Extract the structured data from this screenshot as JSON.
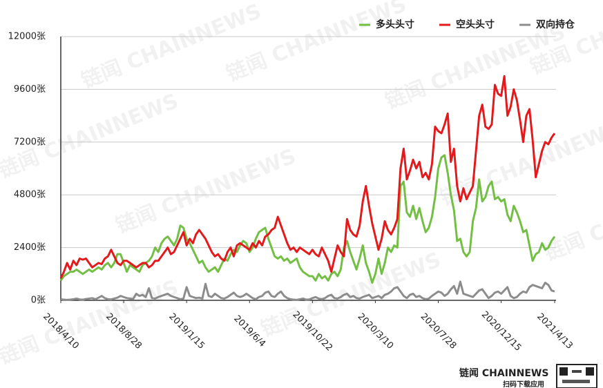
{
  "chart_data": {
    "type": "line",
    "watermark": "链闻 CHAINNEWS",
    "logo": "链闻 CHAINNEWS",
    "logo_caption": "扫码下载应用",
    "categories": [
      "2018/4/10",
      null,
      null,
      null,
      null,
      null,
      null,
      null,
      null,
      null,
      null,
      null,
      null,
      null,
      null,
      null,
      null,
      null,
      null,
      null,
      "2018/8/28",
      null,
      null,
      null,
      null,
      null,
      null,
      null,
      null,
      null,
      null,
      null,
      null,
      null,
      null,
      null,
      null,
      null,
      null,
      null,
      "2019/1/15",
      null,
      null,
      null,
      null,
      null,
      null,
      null,
      null,
      null,
      null,
      null,
      null,
      null,
      null,
      null,
      null,
      null,
      null,
      null,
      "2019/6/4",
      null,
      null,
      null,
      null,
      null,
      null,
      null,
      null,
      null,
      null,
      null,
      null,
      null,
      null,
      null,
      null,
      null,
      null,
      null,
      "2019/10/22",
      null,
      null,
      null,
      null,
      null,
      null,
      null,
      null,
      null,
      null,
      null,
      null,
      null,
      null,
      null,
      null,
      null,
      null,
      null,
      "2020/3/10",
      null,
      null,
      null,
      null,
      null,
      null,
      null,
      null,
      null,
      null,
      null,
      null,
      null,
      null,
      null,
      null,
      null,
      null,
      null,
      "2020/7/28",
      null,
      null,
      null,
      null,
      null,
      null,
      null,
      null,
      null,
      null,
      null,
      null,
      null,
      null,
      null,
      null,
      null,
      null,
      null,
      "2020/12/15",
      null,
      null,
      null,
      null,
      null,
      null,
      null,
      null,
      null,
      null,
      null,
      null,
      null,
      null,
      null,
      null,
      "2021/4/13"
    ],
    "series": [
      {
        "name": "多头头寸",
        "color": "#72bf44",
        "values": [
          900,
          1100,
          1200,
          1300,
          1300,
          1400,
          1300,
          1200,
          1300,
          1400,
          1300,
          1400,
          1500,
          1400,
          1600,
          1700,
          1500,
          1700,
          2100,
          2100,
          1700,
          1300,
          1600,
          1500,
          1400,
          1300,
          1600,
          1700,
          1800,
          2000,
          2400,
          2200,
          2600,
          2800,
          2900,
          2700,
          2500,
          2800,
          3400,
          3300,
          2800,
          2600,
          2300,
          2000,
          1700,
          1800,
          1500,
          1300,
          1400,
          1500,
          1300,
          1600,
          1900,
          1800,
          2100,
          2300,
          2200,
          2500,
          2700,
          2600,
          2200,
          2400,
          2800,
          3100,
          3200,
          3300,
          2800,
          2400,
          2000,
          1900,
          2000,
          1800,
          1900,
          1700,
          1800,
          1900,
          1500,
          1300,
          1200,
          1100,
          1100,
          900,
          1200,
          1000,
          1100,
          900,
          1200,
          1300,
          1100,
          1400,
          2400,
          2700,
          2200,
          1800,
          1400,
          1900,
          2500,
          1700,
          1300,
          800,
          1200,
          1900,
          1200,
          1700,
          2400,
          2200,
          2500,
          2400,
          5200,
          5400,
          4000,
          3800,
          4300,
          3700,
          4200,
          3600,
          3100,
          3300,
          3800,
          4700,
          6000,
          6500,
          6600,
          5800,
          4800,
          4100,
          2700,
          2800,
          2200,
          2000,
          2200,
          3600,
          4200,
          5500,
          4500,
          4700,
          5200,
          5400,
          4600,
          4700,
          4500,
          4600,
          3900,
          3600,
          4300,
          4000,
          3600,
          3100,
          3200,
          2500,
          1800,
          2100,
          2200,
          2600,
          2300,
          2400,
          2700,
          2900
        ]
      },
      {
        "name": "空头头寸",
        "color": "#e3191c",
        "values": [
          1000,
          1300,
          1700,
          1400,
          1800,
          1600,
          1900,
          1850,
          1900,
          1700,
          1500,
          1600,
          1700,
          1650,
          1900,
          2000,
          2300,
          2000,
          1700,
          1600,
          1800,
          1800,
          1700,
          1600,
          1500,
          1600,
          1700,
          1700,
          1500,
          1600,
          1800,
          1800,
          2000,
          2200,
          2400,
          2100,
          2200,
          2500,
          2800,
          3100,
          2500,
          2800,
          2600,
          3000,
          3200,
          3000,
          2800,
          2500,
          2200,
          2000,
          2100,
          1900,
          1800,
          2200,
          2400,
          2000,
          2500,
          2600,
          2500,
          2400,
          2300,
          2600,
          2400,
          2700,
          2500,
          2900,
          3000,
          3200,
          3300,
          3800,
          3400,
          3000,
          2600,
          2300,
          2400,
          2200,
          2400,
          2300,
          2200,
          2100,
          2300,
          2100,
          2000,
          2400,
          2100,
          1800,
          1300,
          1900,
          2500,
          2200,
          2000,
          3700,
          3200,
          3000,
          2900,
          3400,
          4500,
          5200,
          4300,
          3500,
          2900,
          2300,
          2800,
          3600,
          3200,
          3000,
          3300,
          3700,
          6000,
          6900,
          5500,
          5900,
          6400,
          6000,
          6300,
          5600,
          5800,
          5500,
          6200,
          7900,
          7700,
          7600,
          8000,
          8500,
          6300,
          6900,
          5200,
          4500,
          5100,
          4600,
          4900,
          5200,
          6800,
          8400,
          8900,
          7900,
          7800,
          8000,
          9800,
          9400,
          9300,
          10200,
          8400,
          8800,
          9600,
          9100,
          8200,
          7200,
          8400,
          8700,
          7300,
          5600,
          6200,
          6800,
          7200,
          7100,
          7400,
          7600
        ]
      },
      {
        "name": "双向持仓",
        "color": "#8c8c8c",
        "values": [
          50,
          30,
          20,
          30,
          50,
          80,
          40,
          30,
          60,
          80,
          100,
          50,
          120,
          200,
          100,
          50,
          40,
          80,
          120,
          200,
          150,
          100,
          80,
          60,
          300,
          200,
          250,
          150,
          550,
          100,
          80,
          150,
          200,
          250,
          300,
          200,
          150,
          100,
          50,
          80,
          600,
          200,
          150,
          100,
          120,
          80,
          750,
          200,
          150,
          300,
          200,
          100,
          80,
          150,
          250,
          350,
          200,
          150,
          200,
          300,
          200,
          100,
          50,
          150,
          200,
          350,
          400,
          200,
          150,
          300,
          400,
          200,
          100,
          50,
          30,
          20,
          50,
          80,
          30,
          40,
          100,
          150,
          80,
          50,
          100,
          200,
          250,
          100,
          80,
          150,
          250,
          300,
          150,
          200,
          100,
          80,
          150,
          200,
          250,
          100,
          150,
          200,
          100,
          250,
          300,
          400,
          550,
          600,
          400,
          200,
          100,
          250,
          300,
          150,
          200,
          100,
          50,
          80,
          200,
          300,
          400,
          350,
          200,
          300,
          500,
          650,
          300,
          850,
          300,
          250,
          200,
          150,
          300,
          450,
          500,
          300,
          100,
          200,
          350,
          400,
          300,
          450,
          600,
          200,
          100,
          150,
          300,
          400,
          350,
          600,
          700,
          650,
          600,
          550,
          800,
          700,
          450,
          400
        ]
      }
    ],
    "ylim": [
      0,
      12000
    ],
    "yticks": [
      {
        "value": 0,
        "label": "0张"
      },
      {
        "value": 2400,
        "label": "2400张"
      },
      {
        "value": 4800,
        "label": "4800张"
      },
      {
        "value": 7200,
        "label": "7200张"
      },
      {
        "value": 9600,
        "label": "9600张"
      },
      {
        "value": 12000,
        "label": "12000张"
      }
    ],
    "grid": true
  }
}
